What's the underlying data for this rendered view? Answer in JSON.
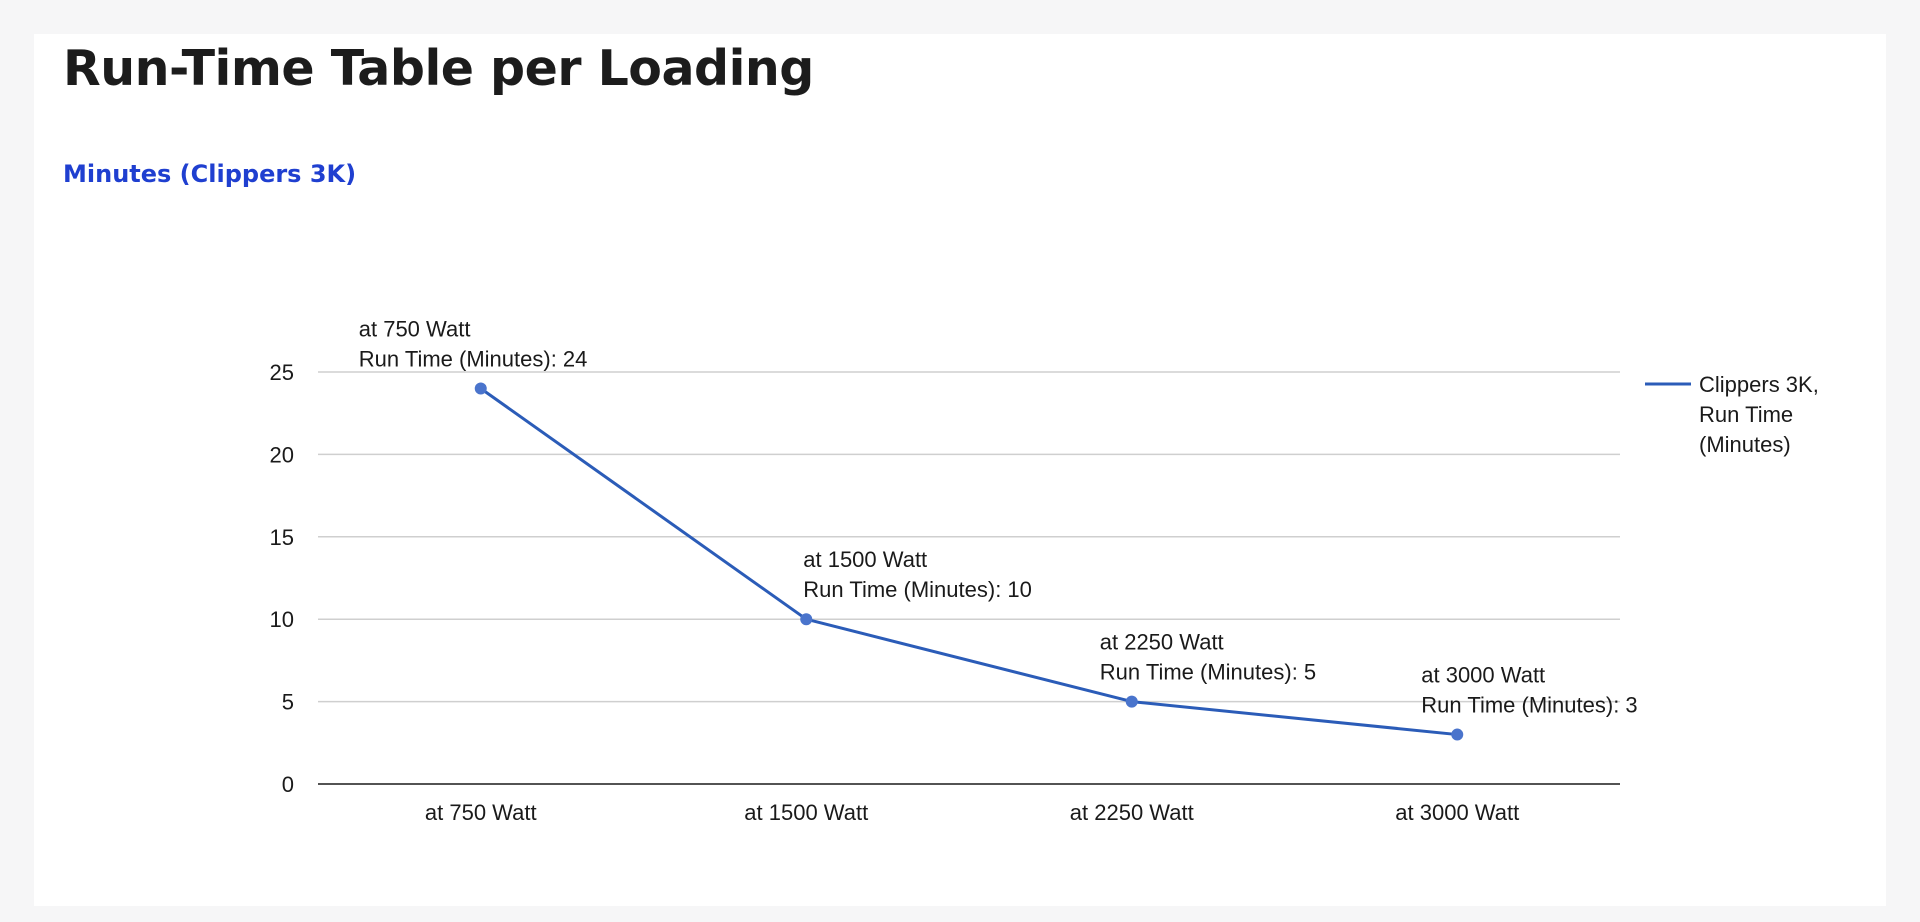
{
  "page": {
    "title": "Run-Time Table per Loading"
  },
  "chart_data": {
    "type": "line",
    "subtitle": "Minutes (Clippers 3K)",
    "categories": [
      "at 750 Watt",
      "at 1500 Watt",
      "at 2250 Watt",
      "at 3000 Watt"
    ],
    "series": [
      {
        "name": "Clippers 3K, Run Time (Minutes)",
        "legend_lines": [
          "Clippers 3K,",
          "Run Time",
          "(Minutes)"
        ],
        "values": [
          24,
          10,
          5,
          3
        ],
        "color": "#2b5cb8"
      }
    ],
    "data_labels": [
      [
        "at 750 Watt",
        "Run Time (Minutes): 24"
      ],
      [
        "at 1500 Watt",
        "Run Time (Minutes): 10"
      ],
      [
        "at 2250 Watt",
        "Run Time (Minutes): 5"
      ],
      [
        "at 3000 Watt",
        "Run Time (Minutes): 3"
      ]
    ],
    "y_ticks": [
      "0",
      "5",
      "10",
      "15",
      "20",
      "25"
    ],
    "ylim": [
      0,
      25
    ],
    "grid": true,
    "legend": "right"
  }
}
